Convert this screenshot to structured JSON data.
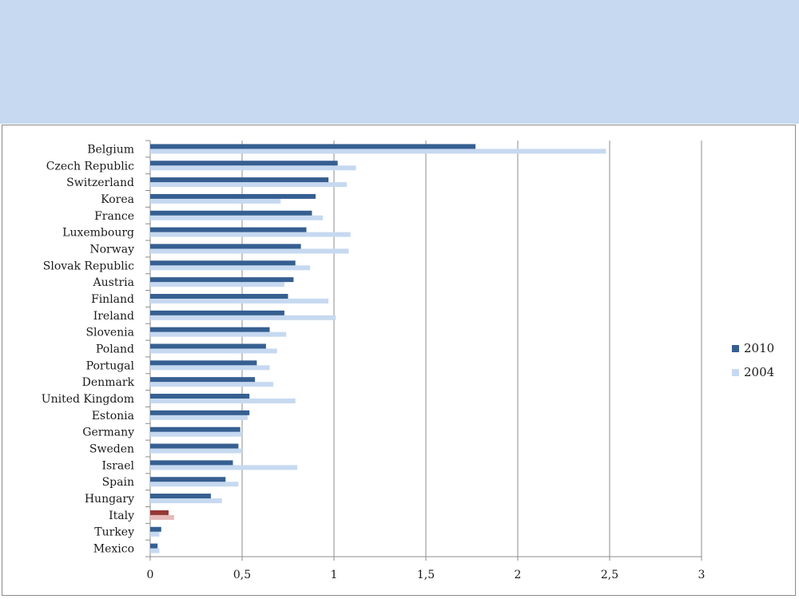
{
  "chart_data": {
    "type": "bar",
    "orientation": "horizontal",
    "categories": [
      "Belgium",
      "Czech Republic",
      "Switzerland",
      "Korea",
      "France",
      "Luxembourg",
      "Norway",
      "Slovak Republic",
      "Austria",
      "Finland",
      "Ireland",
      "Slovenia",
      "Poland",
      "Portugal",
      "Denmark",
      "United Kingdom",
      "Estonia",
      "Germany",
      "Sweden",
      "Israel",
      "Spain",
      "Hungary",
      "Italy",
      "Turkey",
      "Mexico"
    ],
    "series": [
      {
        "name": "2010",
        "color": "#365f91",
        "values": [
          1.77,
          1.02,
          0.97,
          0.9,
          0.88,
          0.85,
          0.82,
          0.79,
          0.78,
          0.75,
          0.73,
          0.65,
          0.63,
          0.58,
          0.57,
          0.54,
          0.54,
          0.49,
          0.48,
          0.45,
          0.41,
          0.33,
          0.1,
          0.06,
          0.04
        ]
      },
      {
        "name": "2004",
        "color": "#c6d9f0",
        "values": [
          2.48,
          1.12,
          1.07,
          0.71,
          0.94,
          1.09,
          1.08,
          0.87,
          0.73,
          0.97,
          1.01,
          0.74,
          0.69,
          0.65,
          0.67,
          0.79,
          0.53,
          0.5,
          0.5,
          0.8,
          0.48,
          0.39,
          0.13,
          0.05,
          0.05
        ]
      }
    ],
    "highlight": {
      "category": "Italy",
      "colors": {
        "2010": "#953735",
        "2004": "#e6b9b8"
      }
    },
    "xlim": [
      0,
      3
    ],
    "x_ticks": [
      "0",
      "0,5",
      "1",
      "1,5",
      "2",
      "2,5",
      "3"
    ],
    "x_tick_values": [
      0,
      0.5,
      1,
      1.5,
      2,
      2.5,
      3
    ],
    "grid": true,
    "legend_position": "right",
    "title": "",
    "xlabel": "",
    "ylabel": ""
  }
}
